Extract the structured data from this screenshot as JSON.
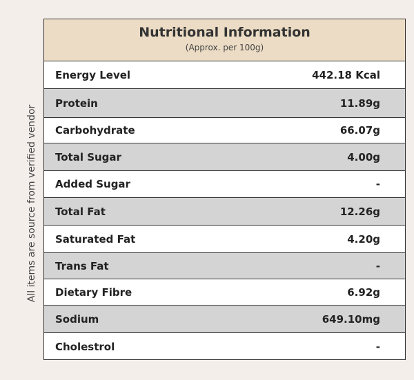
{
  "header": {
    "title": "Nutritional Information",
    "subtitle": "(Approx. per 100g)"
  },
  "side_note": "All items are source from verified vendor",
  "table": {
    "rows": [
      [
        "Energy Level",
        "442.18 Kcal"
      ],
      [
        "Protein",
        "11.89g"
      ],
      [
        "Carbohydrate",
        "66.07g"
      ],
      [
        "Total Sugar",
        "4.00g"
      ],
      [
        "Added Sugar",
        "-"
      ],
      [
        "Total Fat",
        "12.26g"
      ],
      [
        "Saturated Fat",
        "4.20g"
      ],
      [
        "Trans Fat",
        "-"
      ],
      [
        "Dietary Fibre",
        "6.92g"
      ],
      [
        "Sodium",
        "649.10mg"
      ],
      [
        "Cholestrol",
        "-"
      ]
    ]
  }
}
